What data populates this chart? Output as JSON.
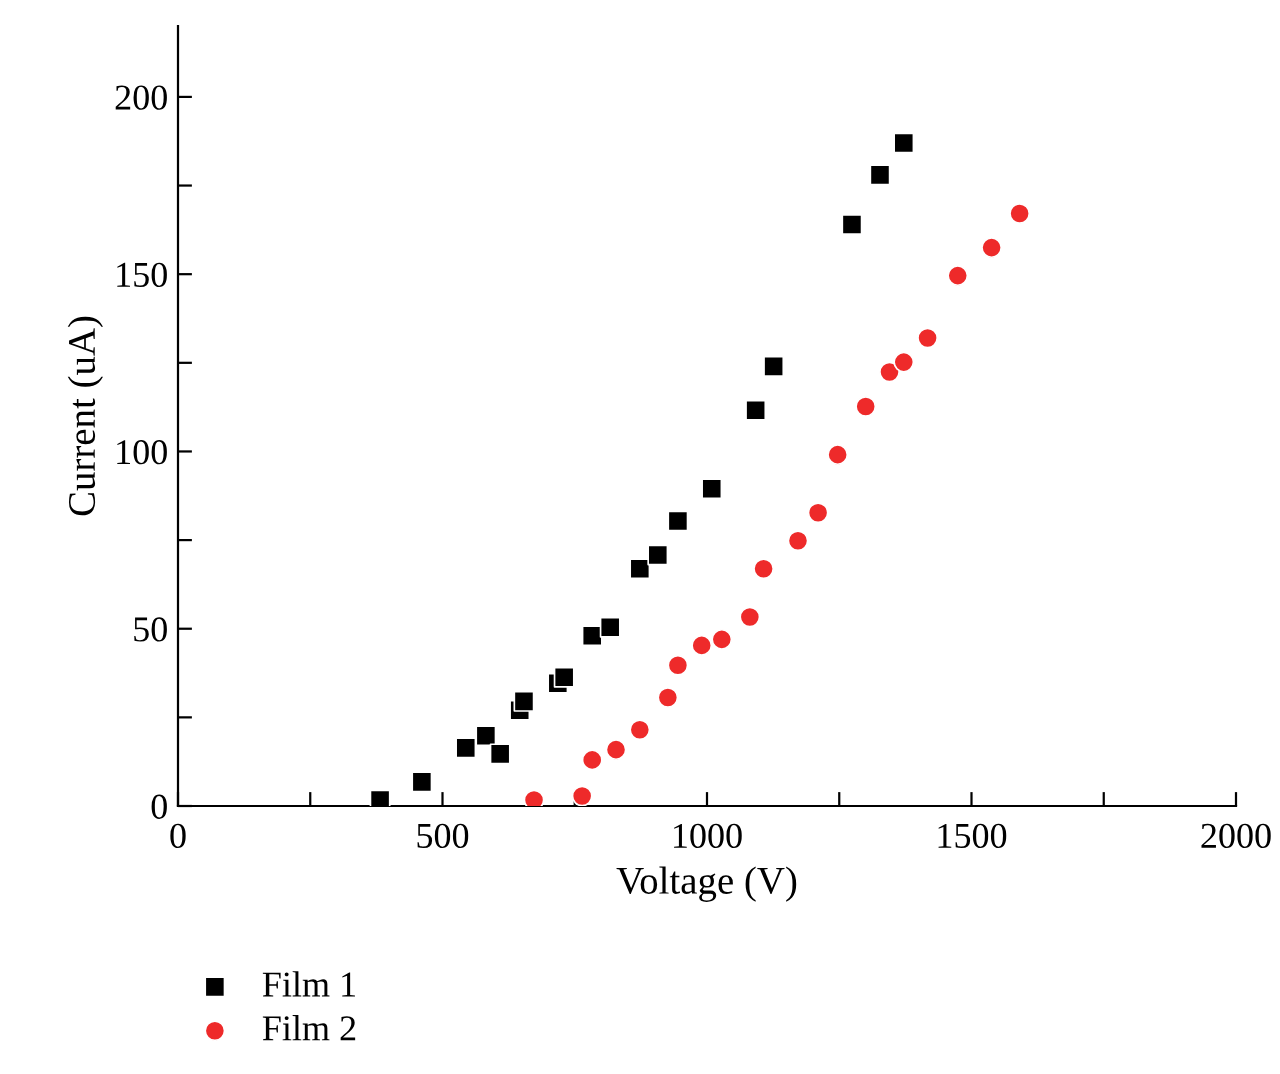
{
  "chart_data": {
    "type": "scatter",
    "xlabel": "Voltage (V)",
    "ylabel": "Current (uA)",
    "xlim": [
      0,
      2000
    ],
    "ylim": [
      0,
      220
    ],
    "xticks": [
      0,
      {
        "value": 250,
        "label": null
      },
      500,
      {
        "value": 750,
        "label": null
      },
      1000,
      {
        "value": 1250,
        "label": null
      },
      1500,
      {
        "value": 1750,
        "label": null
      },
      2000
    ],
    "yticks": [
      0,
      {
        "value": 25,
        "label": null
      },
      50,
      {
        "value": 75,
        "label": null
      },
      100,
      {
        "value": 125,
        "label": null
      },
      150,
      {
        "value": 175,
        "label": null
      },
      200
    ],
    "grid": false,
    "legend": "bottom left",
    "series": [
      {
        "name": "Film 1",
        "color": "#000000",
        "marker": "square",
        "x": [
          382,
          461,
          544,
          582,
          609,
          646,
          654,
          718,
          730,
          783,
          817,
          873,
          907,
          945,
          1009,
          1092,
          1126,
          1274,
          1327,
          1372
        ],
        "values": [
          1.7,
          6.8,
          16.4,
          19.8,
          14.7,
          27,
          29.5,
          34.6,
          36.3,
          48,
          50.4,
          66.9,
          70.8,
          80.4,
          89.5,
          111.6,
          124,
          164,
          178,
          187
        ]
      },
      {
        "name": "Film 2",
        "color": "#ee2a2a",
        "marker": "circle",
        "x": [
          673,
          764,
          783,
          828,
          873,
          926,
          945,
          990,
          1028,
          1081,
          1107,
          1172,
          1210,
          1247,
          1300,
          1345,
          1372,
          1417,
          1474,
          1538,
          1591
        ],
        "values": [
          1.7,
          2.8,
          13,
          15.9,
          21.5,
          30.6,
          39.7,
          45.3,
          47,
          53.3,
          66.9,
          74.8,
          82.7,
          99.1,
          112.7,
          122.4,
          125.2,
          132,
          149.6,
          157.5,
          167.1
        ]
      }
    ]
  }
}
